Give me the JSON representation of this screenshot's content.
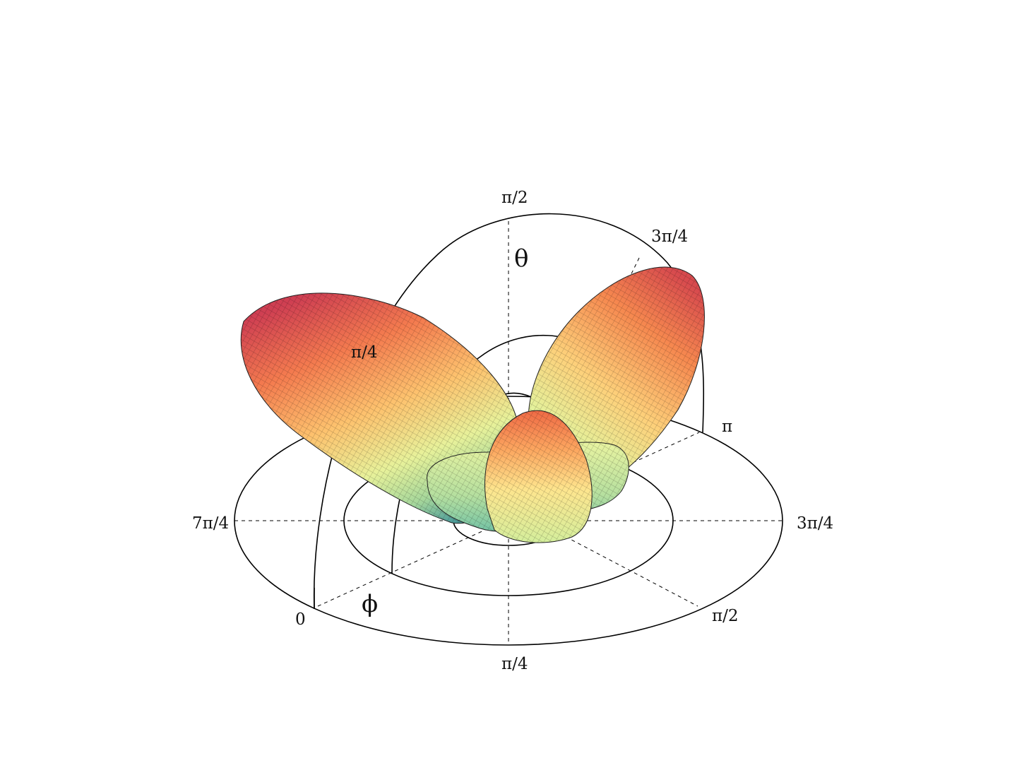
{
  "figure": {
    "theta_symbol": "θ",
    "phi_symbol": "ϕ",
    "elevation_labels": [
      "π/4",
      "π/2",
      "3π/4",
      "π"
    ],
    "azimuth_labels": [
      "0",
      "π/4",
      "π/2",
      "3π/4",
      "7π/4"
    ],
    "lobes": [
      {
        "name": "left-lobe",
        "colors": [
          "#d53e4f",
          "#fc8d59",
          "#fee08b",
          "#e6f598",
          "#99d594",
          "#3288bd"
        ]
      },
      {
        "name": "right-lobe",
        "colors": [
          "#d53e4f",
          "#fc8d59",
          "#fee08b",
          "#e6f598",
          "#99d594"
        ]
      },
      {
        "name": "center-lobe",
        "colors": [
          "#f46d43",
          "#fdae61",
          "#fee08b",
          "#e6f598",
          "#abdda4"
        ]
      },
      {
        "name": "torus-ring",
        "colors": [
          "#e6f598",
          "#abdda4",
          "#66c2a5"
        ]
      }
    ]
  }
}
